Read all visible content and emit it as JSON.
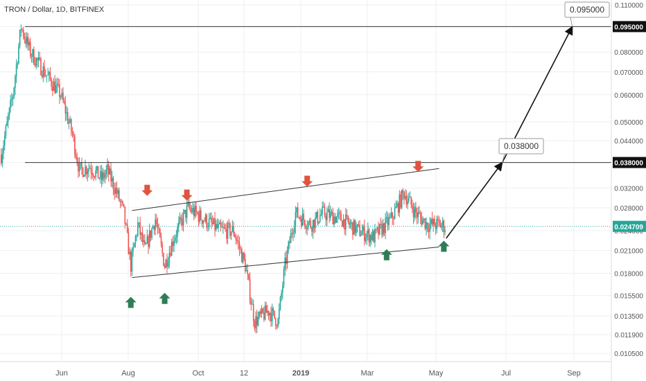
{
  "header": {
    "title": "TRON / Dollar, 1D, BITFINEX"
  },
  "chart_data": {
    "type": "candlestick",
    "symbol": "TRON / Dollar",
    "interval": "1D",
    "exchange": "BITFINEX",
    "y_scale": "log",
    "ylim": [
      0.0102,
      0.111
    ],
    "y_ticks": [
      "0.110000",
      "0.095000",
      "0.080000",
      "0.070000",
      "0.060000",
      "0.050000",
      "0.044000",
      "0.038000",
      "0.032000",
      "0.028000",
      "0.024000",
      "0.021000",
      "0.018000",
      "0.015500",
      "0.013500",
      "0.011900",
      "0.010500"
    ],
    "x_ticks": [
      "Jun",
      "Aug",
      "Oct",
      "12",
      "2019",
      "Mar",
      "May",
      "Jul",
      "Sep"
    ],
    "last_price": "0.024709",
    "last_price_color": "#26a69a",
    "up_color": "#26a69a",
    "down_color": "#ef5350",
    "levels": [
      {
        "value": 0.095,
        "label": "0.095000"
      },
      {
        "value": 0.038,
        "label": "0.038000"
      }
    ],
    "callouts": [
      "0.095000",
      "0.038000"
    ],
    "price_path_close": [
      [
        "2018-04-25",
        0.04
      ],
      [
        "2018-05-05",
        0.06
      ],
      [
        "2018-05-12",
        0.095
      ],
      [
        "2018-05-20",
        0.08
      ],
      [
        "2018-06-01",
        0.07
      ],
      [
        "2018-06-15",
        0.06
      ],
      [
        "2018-06-25",
        0.046
      ],
      [
        "2018-07-01",
        0.036
      ],
      [
        "2018-07-10",
        0.037
      ],
      [
        "2018-07-20",
        0.034
      ],
      [
        "2018-07-25",
        0.036
      ],
      [
        "2018-08-02",
        0.031
      ],
      [
        "2018-08-08",
        0.027
      ],
      [
        "2018-08-14",
        0.019
      ],
      [
        "2018-08-20",
        0.025
      ],
      [
        "2018-08-26",
        0.021
      ],
      [
        "2018-09-04",
        0.026
      ],
      [
        "2018-09-12",
        0.019
      ],
      [
        "2018-09-20",
        0.023
      ],
      [
        "2018-10-02",
        0.028
      ],
      [
        "2018-10-15",
        0.026
      ],
      [
        "2018-10-30",
        0.024
      ],
      [
        "2018-11-10",
        0.024
      ],
      [
        "2018-11-20",
        0.019
      ],
      [
        "2018-11-28",
        0.013
      ],
      [
        "2018-12-10",
        0.014
      ],
      [
        "2018-12-18",
        0.013
      ],
      [
        "2018-12-24",
        0.019
      ],
      [
        "2019-01-02",
        0.027
      ],
      [
        "2019-01-15",
        0.025
      ],
      [
        "2019-01-25",
        0.027
      ],
      [
        "2019-02-10",
        0.026
      ],
      [
        "2019-02-25",
        0.024
      ],
      [
        "2019-03-10",
        0.023
      ],
      [
        "2019-03-25",
        0.026
      ],
      [
        "2019-04-05",
        0.031
      ],
      [
        "2019-04-15",
        0.027
      ],
      [
        "2019-04-25",
        0.025
      ],
      [
        "2019-05-05",
        0.025
      ],
      [
        "2019-05-10",
        0.024709
      ]
    ],
    "channel_upper": [
      [
        "2018-08-15",
        0.0275
      ],
      [
        "2019-05-05",
        0.0365
      ]
    ],
    "channel_lower": [
      [
        "2018-08-15",
        0.0175
      ],
      [
        "2019-05-05",
        0.0215
      ]
    ],
    "projection": [
      [
        "2019-05-11",
        0.0228
      ],
      [
        "2019-06-28",
        0.038
      ],
      [
        "2019-08-27",
        0.095
      ]
    ],
    "arrows_down": [
      [
        "2018-08-28",
        0.0315
      ],
      [
        "2018-10-01",
        0.0305
      ],
      [
        "2019-01-12",
        0.0335
      ],
      [
        "2019-04-17",
        0.037
      ]
    ],
    "arrows_up": [
      [
        "2018-08-14",
        0.0148
      ],
      [
        "2018-09-12",
        0.0152
      ],
      [
        "2019-03-21",
        0.0204
      ],
      [
        "2019-05-09",
        0.0216
      ]
    ]
  }
}
